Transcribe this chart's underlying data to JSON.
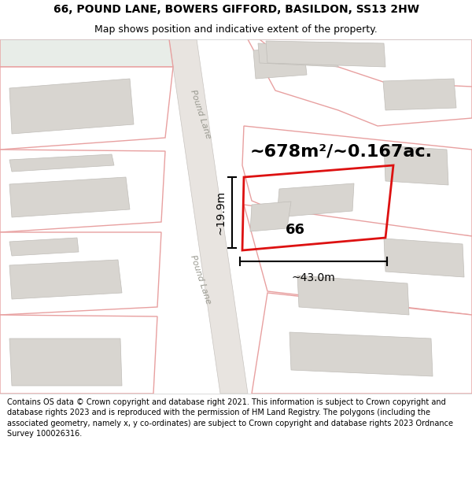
{
  "title": "66, POUND LANE, BOWERS GIFFORD, BASILDON, SS13 2HW",
  "subtitle": "Map shows position and indicative extent of the property.",
  "footer": "Contains OS data © Crown copyright and database right 2021. This information is subject to Crown copyright and database rights 2023 and is reproduced with the permission of HM Land Registry. The polygons (including the associated geometry, namely x, y co-ordinates) are subject to Crown copyright and database rights 2023 Ordnance Survey 100026316.",
  "bg_color": "#ffffff",
  "map_bg": "#ffffff",
  "road_fill": "#e8e4e0",
  "road_outline": "#c8c4c0",
  "plot_outline_color": "#e8a0a0",
  "highlight_color": "#dd1111",
  "building_fill": "#d8d5d0",
  "building_outline": "#c0bdb8",
  "area_text": "~678m²/~0.167ac.",
  "label_66": "66",
  "width_label": "~43.0m",
  "height_label": "~19.9m",
  "road_label_upper": "Pound Lane",
  "road_label_lower": "Pound Lane",
  "green_fill": "#e8ede8",
  "title_fontsize": 10,
  "subtitle_fontsize": 9,
  "footer_fontsize": 7
}
